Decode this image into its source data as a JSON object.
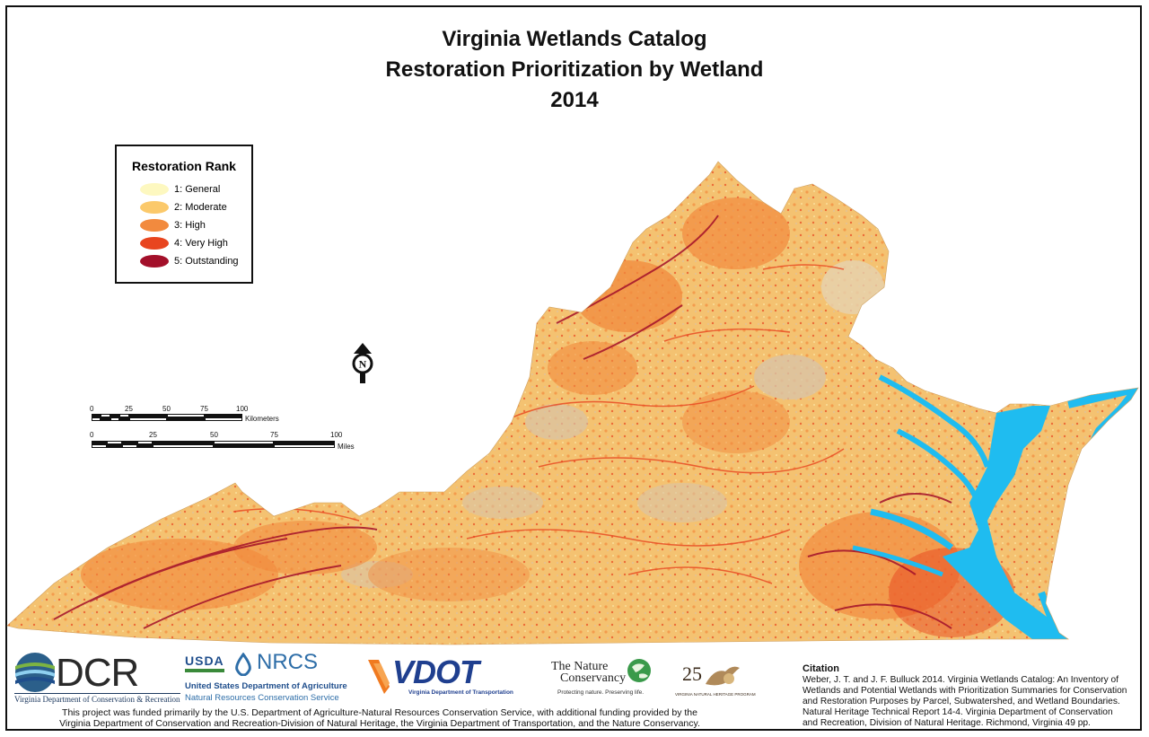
{
  "title": {
    "line1": "Virginia Wetlands Catalog",
    "line2": "Restoration Prioritization by Wetland",
    "line3": "2014"
  },
  "legend": {
    "title": "Restoration Rank",
    "items": [
      {
        "label": "1: General",
        "color": "#fdf8c0"
      },
      {
        "label": "2: Moderate",
        "color": "#fbc96b"
      },
      {
        "label": "3: High",
        "color": "#f28a3e"
      },
      {
        "label": "4: Very High",
        "color": "#e8451f"
      },
      {
        "label": "5: Outstanding",
        "color": "#a3102a"
      }
    ]
  },
  "map": {
    "colors": {
      "background": "#f4c271",
      "general": "#fdf8c0",
      "moderate": "#fbc96b",
      "high": "#f28a3e",
      "very_high": "#e8451f",
      "outstanding": "#a3102a",
      "urban_gray": "#d9c3a6",
      "water": "#1fbcf0"
    }
  },
  "north_arrow": {
    "icon": "north-arrow-icon",
    "letter": "N"
  },
  "scale_km": {
    "ticks": [
      "0",
      "25",
      "50",
      "75",
      "100"
    ],
    "unit": "Kilometers"
  },
  "scale_mi": {
    "ticks": [
      "0",
      "25",
      "50",
      "75",
      "100"
    ],
    "unit": "Miles"
  },
  "logos": {
    "dcr": {
      "text": "DCR",
      "subtitle": "Virginia Department of Conservation & Recreation"
    },
    "usda": {
      "text": "USDA",
      "nrcs": "NRCS",
      "line1": "United States Department of Agriculture",
      "line2": "Natural Resources Conservation Service"
    },
    "vdot": {
      "text": "VDOT",
      "subtitle": "Virginia Department of Transportation"
    },
    "tnc": {
      "line1": "The Nature",
      "line2": "Conservancy",
      "tagline": "Protecting nature. Preserving life."
    },
    "natural_heritage": {
      "text": "25",
      "subtitle": "VIRGINIA NATURAL HERITAGE PROGRAM"
    }
  },
  "funding": {
    "line1": "This project was funded primarily by the U.S. Department of Agriculture-Natural Resources Conservation Service, with additional funding provided by the",
    "line2": "Virginia Department of Conservation and Recreation-Division of Natural Heritage, the Virginia Department of Transportation, and the Nature Conservancy."
  },
  "citation": {
    "title": "Citation",
    "lines": [
      "Weber, J. T. and J. F. Bulluck 2014. Virginia Wetlands Catalog: An Inventory of",
      "Wetlands and Potential Wetlands with Prioritization Summaries for Conservation",
      "and Restoration Purposes by Parcel, Subwatershed, and Wetland Boundaries.",
      "Natural Heritage Technical Report 14-4. Virginia Department of Conservation",
      "and Recreation, Division of Natural Heritage. Richmond, Virginia 49 pp."
    ]
  }
}
